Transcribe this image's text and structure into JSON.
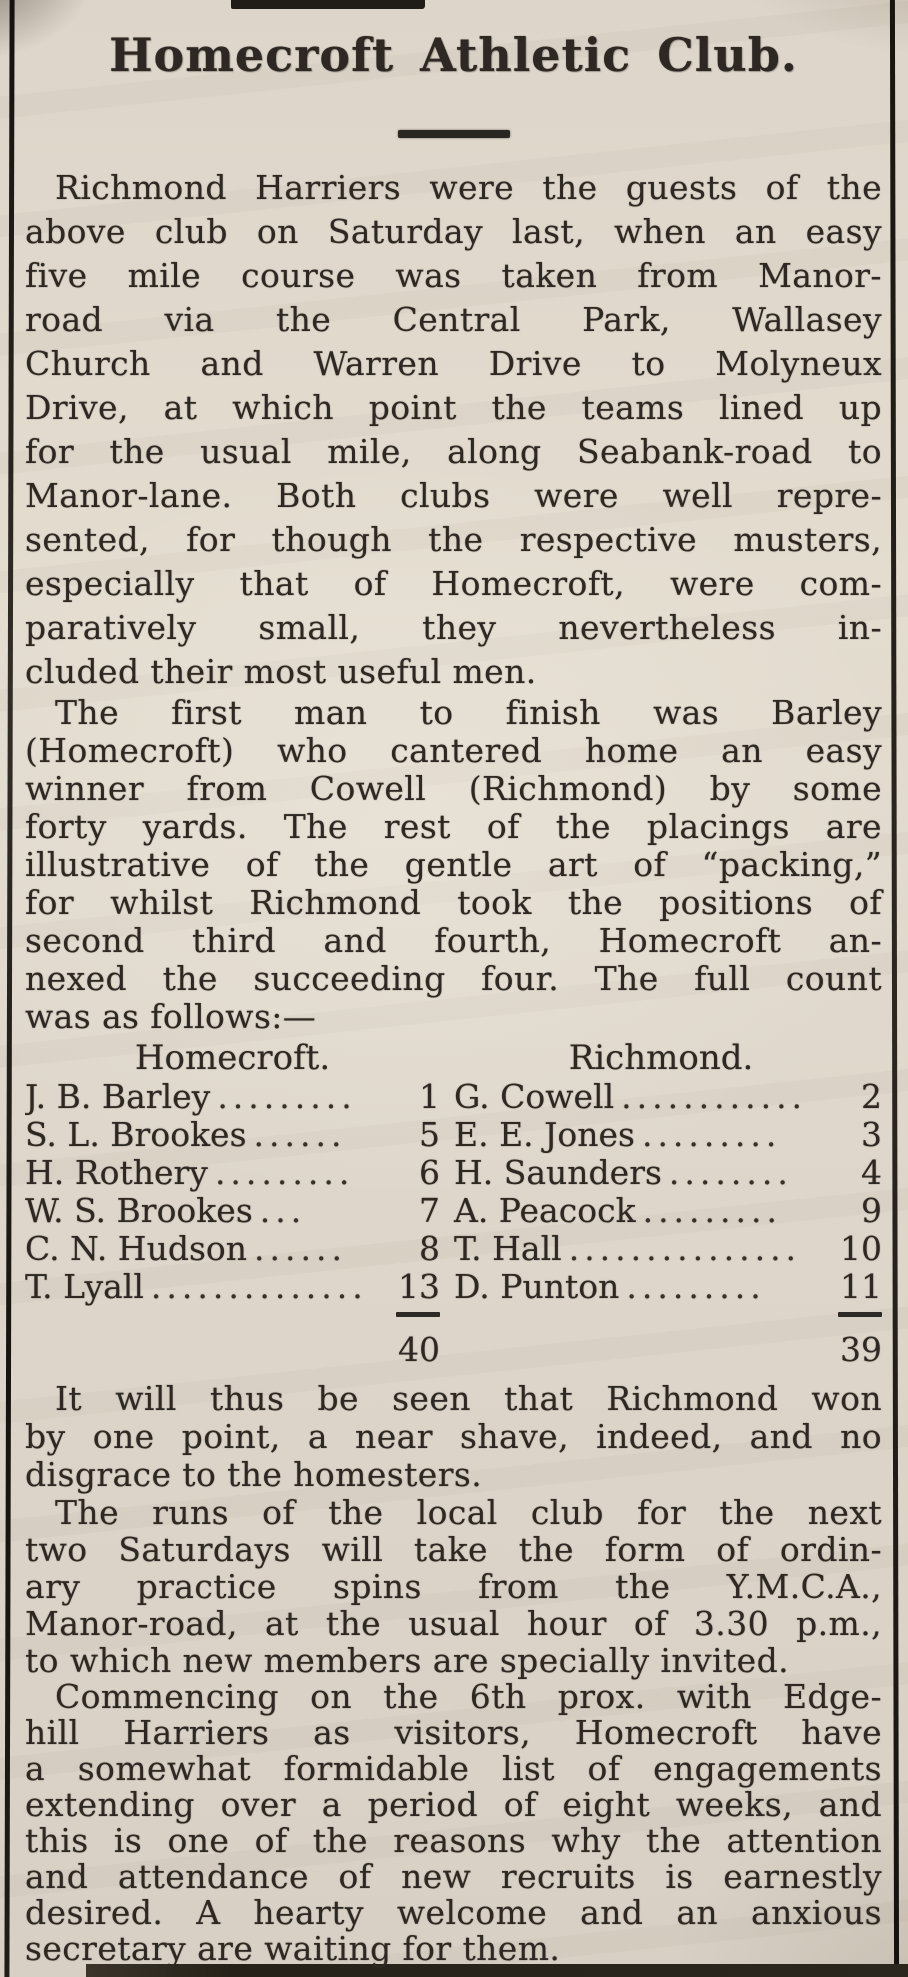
{
  "colors": {
    "paper": "#ddd6ca",
    "ink": "#2d2823",
    "rule": "#17140f"
  },
  "article": {
    "title": "Homecroft Athletic Club.",
    "paragraphs": [
      {
        "lines": [
          "Richmond Harriers were the guests of the",
          "above club on Saturday last, when an easy",
          "five mile course was taken from Manor-",
          "road via the Central Park, Wallasey",
          "Church and Warren Drive to Molyneux",
          "Drive, at which point the teams lined up",
          "for the usual mile, along Seabank-road to",
          "Manor-lane. Both clubs were well repre-",
          "sented, for though the respective musters,",
          "especially that of Homecroft, were com-",
          "paratively small, they nevertheless in-",
          "cluded their most useful men."
        ]
      },
      {
        "lines": [
          "The first man to finish was Barley",
          "(Homecroft) who cantered home an easy",
          "winner from Cowell (Richmond) by some",
          "forty yards. The rest of the placings are",
          "illustrative of the gentle art of “packing,”",
          "for whilst Richmond took the positions of",
          "second third and fourth, Homecroft an-",
          "nexed the succeeding four. The full count",
          "was as follows:—"
        ]
      },
      {
        "lines": [
          "It will thus be seen that Richmond won",
          "by one point, a near shave, indeed, and no",
          "disgrace to the homesters."
        ]
      },
      {
        "lines": [
          "The runs of the local club for the next",
          "two Saturdays will take the form of ordin-",
          "ary practice spins from the Y.M.C.A.,",
          "Manor-road, at the usual hour of 3.30 p.m.,",
          "to which new members are specially invited."
        ]
      },
      {
        "lines": [
          "Commencing on the 6th prox. with Edge-",
          "hill Harriers as visitors, Homecroft have",
          "a somewhat formidable list of engagements",
          "extending over a period of eight weeks, and",
          "this is one of the reasons why the attention",
          "and attendance of new recruits is earnestly",
          "desired. A hearty welcome and an anxious",
          "secretary are waiting for them."
        ]
      }
    ],
    "results": {
      "left_header": "Homecroft.",
      "right_header": "Richmond.",
      "rows": [
        {
          "l_name": "J. B. Barley",
          "l_dots": ".........",
          "l_num": "1",
          "r_name": "G. Cowell",
          "r_dots": "............",
          "r_num": "2"
        },
        {
          "l_name": "S. L. Brookes",
          "l_dots": "......",
          "l_num": "5",
          "r_name": "E. E. Jones",
          "r_dots": ".........",
          "r_num": "3"
        },
        {
          "l_name": "H. Rothery",
          "l_dots": ".........",
          "l_num": "6",
          "r_name": "H. Saunders",
          "r_dots": "........",
          "r_num": "4"
        },
        {
          "l_name": "W. S. Brookes",
          "l_dots": "...",
          "l_num": "7",
          "r_name": "A. Peacock",
          "r_dots": ".........",
          "r_num": "9"
        },
        {
          "l_name": "C. N. Hudson",
          "l_dots": "......",
          "l_num": "8",
          "r_name": "T. Hall",
          "r_dots": "...............",
          "r_num": "10"
        },
        {
          "l_name": "T. Lyall",
          "l_dots": "..............",
          "l_num": "13",
          "r_name": "D. Punton",
          "r_dots": ".........",
          "r_num": "11"
        }
      ],
      "left_total": "40",
      "right_total": "39"
    }
  }
}
